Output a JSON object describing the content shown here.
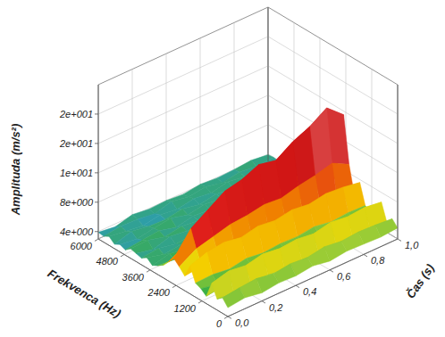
{
  "chart_data": {
    "type": "surface",
    "x_label": "Frekvenca (Hz)",
    "y_label": "Čas (s)",
    "z_label": "Amplituda (m/s²)",
    "grid": true,
    "xlim": [
      0,
      6000
    ],
    "xticks": [
      0,
      1200,
      2400,
      3600,
      4800,
      6000
    ],
    "ylim": [
      0,
      1
    ],
    "yticks": [
      {
        "value": 0,
        "label": "0,0"
      },
      {
        "value": 0.2,
        "label": "0,2"
      },
      {
        "value": 0.4,
        "label": "0,4"
      },
      {
        "value": 0.6,
        "label": "0,6"
      },
      {
        "value": 0.8,
        "label": "0,8"
      },
      {
        "value": 1,
        "label": "1,0"
      }
    ],
    "zlim": [
      3,
      24
    ],
    "zticks": [
      {
        "value": 4,
        "label": "4e+000"
      },
      {
        "value": 8,
        "label": "8e+000"
      },
      {
        "value": 12,
        "label": "1e+001"
      },
      {
        "value": 16,
        "label": "2e+001"
      },
      {
        "value": 20,
        "label": "2e+001"
      }
    ],
    "x": [
      0,
      250,
      500,
      750,
      1000,
      1250,
      1500,
      1750,
      2000,
      2250,
      2500,
      2750,
      3000,
      3250,
      3500,
      3750,
      4000,
      4250,
      4500,
      4750,
      5000,
      5250,
      5500,
      5750,
      6000
    ],
    "y": [
      0,
      0.1,
      0.2,
      0.3,
      0.4,
      0.5,
      0.6,
      0.7,
      0.8,
      0.9,
      1.0
    ],
    "z": [
      [
        4.2,
        5.1,
        4.5,
        6.2,
        4.0,
        4.6,
        4.9,
        6.8,
        5.0,
        5.8,
        6.5,
        5.6,
        4.7,
        4.2,
        3.8,
        4.4,
        3.9,
        4.1,
        4.3,
        3.7,
        4.0,
        3.6,
        4.2,
        3.8,
        3.9
      ],
      [
        4.5,
        5.4,
        4.2,
        6.8,
        4.3,
        4.1,
        5.0,
        7.6,
        5.3,
        7.2,
        9.5,
        6.9,
        5.1,
        4.0,
        4.3,
        3.8,
        4.2,
        3.6,
        4.4,
        4.0,
        3.7,
        4.3,
        3.9,
        4.1,
        3.6
      ],
      [
        4.1,
        5.6,
        4.4,
        6.5,
        4.5,
        4.3,
        4.7,
        7.9,
        5.5,
        7.8,
        11.0,
        7.4,
        4.9,
        4.5,
        3.9,
        4.1,
        3.7,
        4.3,
        3.8,
        4.2,
        4.1,
        3.9,
        3.6,
        4.0,
        4.2
      ],
      [
        4.4,
        5.2,
        4.6,
        7.0,
        4.2,
        4.5,
        5.1,
        7.5,
        5.4,
        8.4,
        12.5,
        7.9,
        5.2,
        4.3,
        4.1,
        4.4,
        3.9,
        4.0,
        4.2,
        3.6,
        4.4,
        3.8,
        4.0,
        3.7,
        3.9
      ],
      [
        4.3,
        5.5,
        4.3,
        6.7,
        4.4,
        4.2,
        4.8,
        8.0,
        5.6,
        8.6,
        13.0,
        8.2,
        5.0,
        4.6,
        4.0,
        3.9,
        4.3,
        3.8,
        3.9,
        4.1,
        3.8,
        4.2,
        3.7,
        4.3,
        4.0
      ],
      [
        4.6,
        5.3,
        4.5,
        6.9,
        4.1,
        4.6,
        5.0,
        7.7,
        5.3,
        9.0,
        14.0,
        8.6,
        5.3,
        4.2,
        4.2,
        4.3,
        3.8,
        4.2,
        4.0,
        3.9,
        4.2,
        3.7,
        4.1,
        3.9,
        3.8
      ],
      [
        4.2,
        5.7,
        4.2,
        6.6,
        4.5,
        4.3,
        4.9,
        8.1,
        5.7,
        8.8,
        13.5,
        8.4,
        5.1,
        4.4,
        3.9,
        4.0,
        4.1,
        3.7,
        4.3,
        4.0,
        3.9,
        4.1,
        3.8,
        4.2,
        4.1
      ],
      [
        4.5,
        5.4,
        4.6,
        7.1,
        4.3,
        4.4,
        5.2,
        7.8,
        5.5,
        9.4,
        15.0,
        9.0,
        5.4,
        4.5,
        4.1,
        4.2,
        3.9,
        4.1,
        3.8,
        4.2,
        4.0,
        3.8,
        4.3,
        3.7,
        3.9
      ],
      [
        4.4,
        5.6,
        4.3,
        6.8,
        4.2,
        4.7,
        4.8,
        8.2,
        5.8,
        9.8,
        16.0,
        9.5,
        5.2,
        4.3,
        4.0,
        4.4,
        4.0,
        3.9,
        4.1,
        3.7,
        4.3,
        4.0,
        3.9,
        4.1,
        4.0
      ],
      [
        4.3,
        5.5,
        4.5,
        7.0,
        4.4,
        4.5,
        5.0,
        8.0,
        5.6,
        10.4,
        17.5,
        10.0,
        5.5,
        4.6,
        4.2,
        4.1,
        3.8,
        4.2,
        3.9,
        4.0,
        4.1,
        3.9,
        4.0,
        3.8,
        4.2
      ],
      [
        4.5,
        5.3,
        4.4,
        6.7,
        4.3,
        4.4,
        4.9,
        7.6,
        5.4,
        9.2,
        15.5,
        8.8,
        5.1,
        4.4,
        4.0,
        4.2,
        4.0,
        3.8,
        4.2,
        3.9,
        3.8,
        4.1,
        3.9,
        4.0,
        3.9
      ]
    ]
  }
}
